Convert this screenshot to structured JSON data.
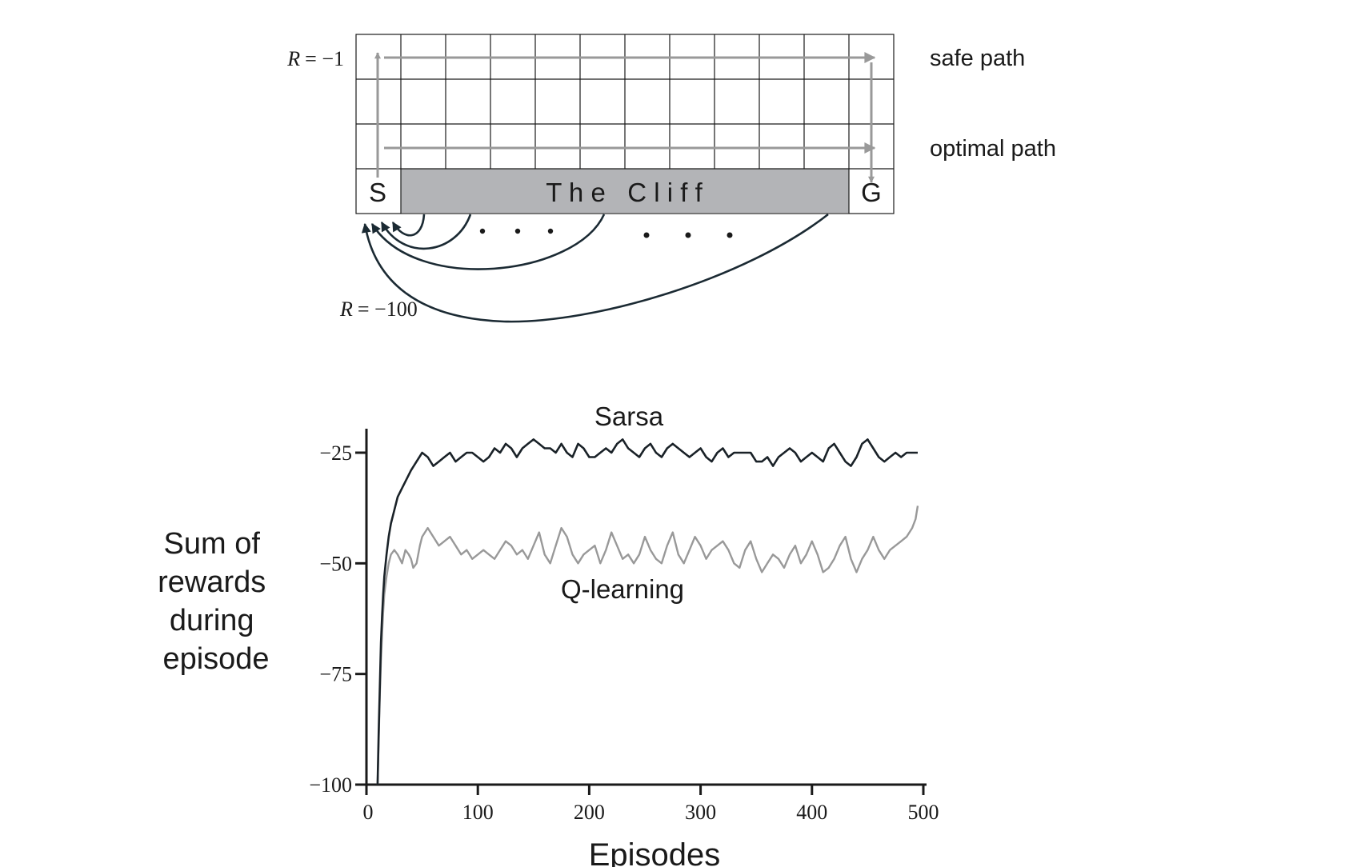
{
  "gridworld": {
    "start_label": "S",
    "goal_label": "G",
    "cliff_label": "T h e   C l i f f",
    "reward_step": {
      "symbol": "R",
      "value": "= −1"
    },
    "reward_cliff": {
      "symbol": "R",
      "value": "= −100"
    },
    "safe_path_label": "safe path",
    "optimal_path_label": "optimal path",
    "colors": {
      "cliff": "#b3b4b7",
      "path": "#999999",
      "grid": "#1a1a1a",
      "arrow": "#1b2a33"
    }
  },
  "chart_data": {
    "type": "line",
    "title": "",
    "xlabel": "Episodes",
    "ylabel": [
      "Sum of",
      "rewards",
      "during",
      "episode"
    ],
    "xlim": [
      0,
      500
    ],
    "ylim": [
      -100,
      -20
    ],
    "xticks": [
      0,
      100,
      200,
      300,
      400,
      500
    ],
    "xtick_labels": [
      "0",
      "100",
      "200",
      "300",
      "400",
      "500"
    ],
    "yticks": [
      -25,
      -50,
      -75,
      -100
    ],
    "ytick_labels": [
      "−25",
      "−50",
      "−75",
      "−100"
    ],
    "grid": false,
    "series": [
      {
        "name": "Sarsa",
        "color": "#1a2228",
        "x": [
          10,
          11,
          12,
          13,
          14,
          15,
          16,
          18,
          20,
          22,
          25,
          28,
          32,
          36,
          40,
          45,
          50,
          55,
          60,
          65,
          70,
          75,
          80,
          85,
          90,
          95,
          100,
          105,
          110,
          115,
          120,
          125,
          130,
          135,
          140,
          145,
          150,
          155,
          160,
          165,
          170,
          175,
          180,
          185,
          190,
          195,
          200,
          205,
          210,
          215,
          220,
          225,
          230,
          235,
          240,
          245,
          250,
          255,
          260,
          265,
          270,
          275,
          280,
          285,
          290,
          295,
          300,
          305,
          310,
          315,
          320,
          325,
          330,
          335,
          340,
          345,
          350,
          355,
          360,
          365,
          370,
          375,
          380,
          385,
          390,
          395,
          400,
          405,
          410,
          415,
          420,
          425,
          430,
          435,
          440,
          445,
          450,
          455,
          460,
          465,
          470,
          475,
          480,
          485,
          490,
          495
        ],
        "y": [
          -100,
          -88,
          -78,
          -68,
          -62,
          -57,
          -53,
          -48,
          -44,
          -41,
          -38,
          -35,
          -33,
          -31,
          -29,
          -27,
          -25,
          -26,
          -28,
          -27,
          -26,
          -25,
          -27,
          -26,
          -25,
          -25,
          -26,
          -27,
          -26,
          -24,
          -25,
          -23,
          -24,
          -26,
          -24,
          -23,
          -22,
          -23,
          -24,
          -24,
          -25,
          -23,
          -25,
          -26,
          -23,
          -24,
          -26,
          -26,
          -25,
          -24,
          -25,
          -23,
          -22,
          -24,
          -25,
          -26,
          -24,
          -23,
          -25,
          -26,
          -24,
          -23,
          -24,
          -25,
          -26,
          -25,
          -24,
          -26,
          -27,
          -25,
          -24,
          -26,
          -25,
          -25,
          -25,
          -25,
          -27,
          -27,
          -26,
          -28,
          -26,
          -25,
          -24,
          -25,
          -27,
          -26,
          -25,
          -26,
          -27,
          -24,
          -23,
          -25,
          -27,
          -28,
          -26,
          -23,
          -22,
          -24,
          -26,
          -27,
          -26,
          -25,
          -26,
          -25,
          -25,
          -25
        ]
      },
      {
        "name": "Q-learning",
        "color": "#999999",
        "x": [
          10,
          11,
          12,
          13,
          14,
          15,
          16,
          18,
          20,
          22,
          25,
          28,
          30,
          32,
          35,
          38,
          40,
          42,
          45,
          48,
          50,
          55,
          60,
          65,
          70,
          75,
          80,
          85,
          90,
          95,
          100,
          105,
          110,
          115,
          120,
          125,
          130,
          135,
          140,
          145,
          150,
          155,
          160,
          165,
          170,
          175,
          180,
          185,
          190,
          195,
          200,
          205,
          210,
          215,
          220,
          225,
          230,
          235,
          240,
          245,
          250,
          255,
          260,
          265,
          270,
          275,
          280,
          285,
          290,
          295,
          300,
          305,
          310,
          315,
          320,
          325,
          330,
          335,
          340,
          345,
          350,
          355,
          360,
          365,
          370,
          375,
          380,
          385,
          390,
          395,
          400,
          405,
          410,
          415,
          420,
          425,
          430,
          435,
          440,
          445,
          450,
          455,
          460,
          465,
          470,
          475,
          480,
          485,
          490,
          493,
          495
        ],
        "y": [
          -100,
          -90,
          -80,
          -72,
          -66,
          -61,
          -57,
          -53,
          -50,
          -48,
          -47,
          -48,
          -49,
          -50,
          -47,
          -48,
          -49,
          -51,
          -50,
          -46,
          -44,
          -42,
          -44,
          -46,
          -45,
          -44,
          -46,
          -48,
          -47,
          -49,
          -48,
          -47,
          -48,
          -49,
          -47,
          -45,
          -46,
          -48,
          -47,
          -49,
          -46,
          -43,
          -48,
          -50,
          -46,
          -42,
          -44,
          -48,
          -50,
          -48,
          -47,
          -46,
          -50,
          -47,
          -43,
          -46,
          -49,
          -48,
          -50,
          -48,
          -44,
          -47,
          -49,
          -50,
          -46,
          -43,
          -48,
          -50,
          -47,
          -44,
          -46,
          -49,
          -47,
          -46,
          -45,
          -47,
          -50,
          -51,
          -47,
          -45,
          -49,
          -52,
          -50,
          -48,
          -49,
          -51,
          -48,
          -46,
          -50,
          -48,
          -45,
          -48,
          -52,
          -51,
          -49,
          -46,
          -44,
          -49,
          -52,
          -49,
          -47,
          -44,
          -47,
          -49,
          -47,
          -46,
          -45,
          -44,
          -42,
          -40,
          -37
        ]
      }
    ]
  }
}
